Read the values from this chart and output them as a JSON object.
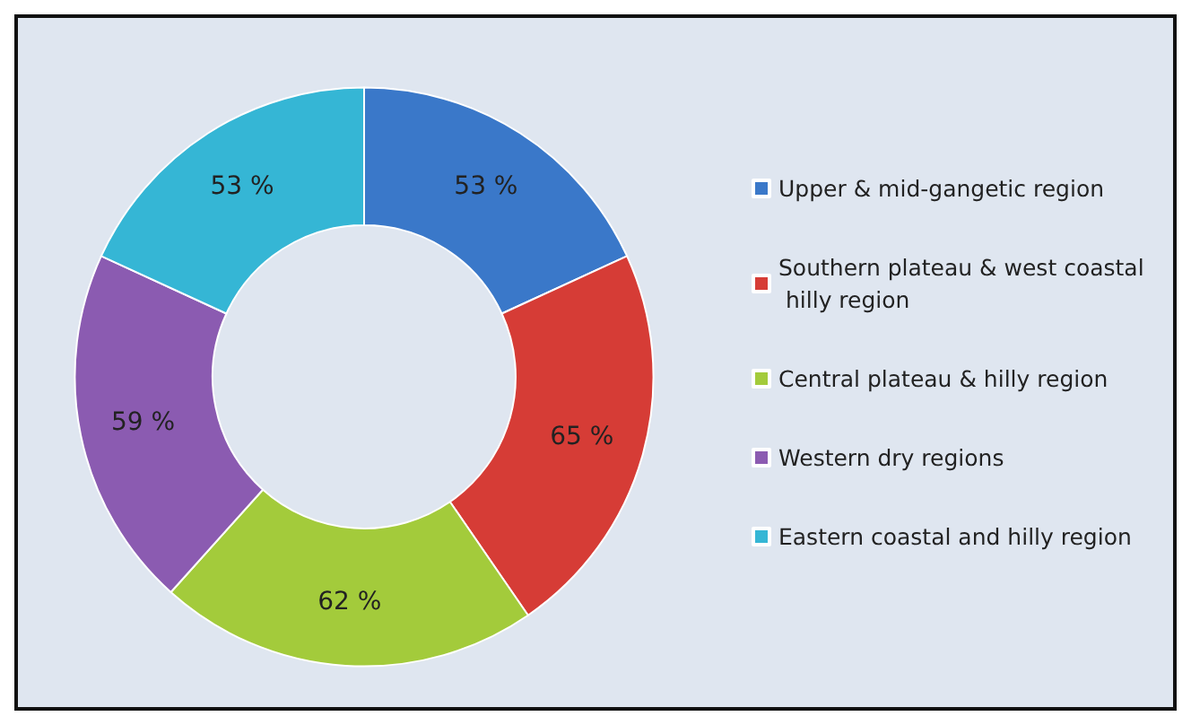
{
  "chart_data": {
    "type": "donut",
    "categories": [
      "Upper & mid-gangetic region",
      "Southern plateau & west coastal hilly region",
      "Central plateau & hilly region",
      "Western dry regions",
      "Eastern coastal and hilly region"
    ],
    "values": [
      53,
      65,
      62,
      59,
      53
    ],
    "colors": [
      "#3a78c9",
      "#d63c36",
      "#a3cb3b",
      "#8b5bb1",
      "#35b6d5"
    ],
    "value_labels": [
      "53 %",
      "65 %",
      "62 %",
      "59 %",
      "53 %"
    ],
    "legend": "right"
  }
}
